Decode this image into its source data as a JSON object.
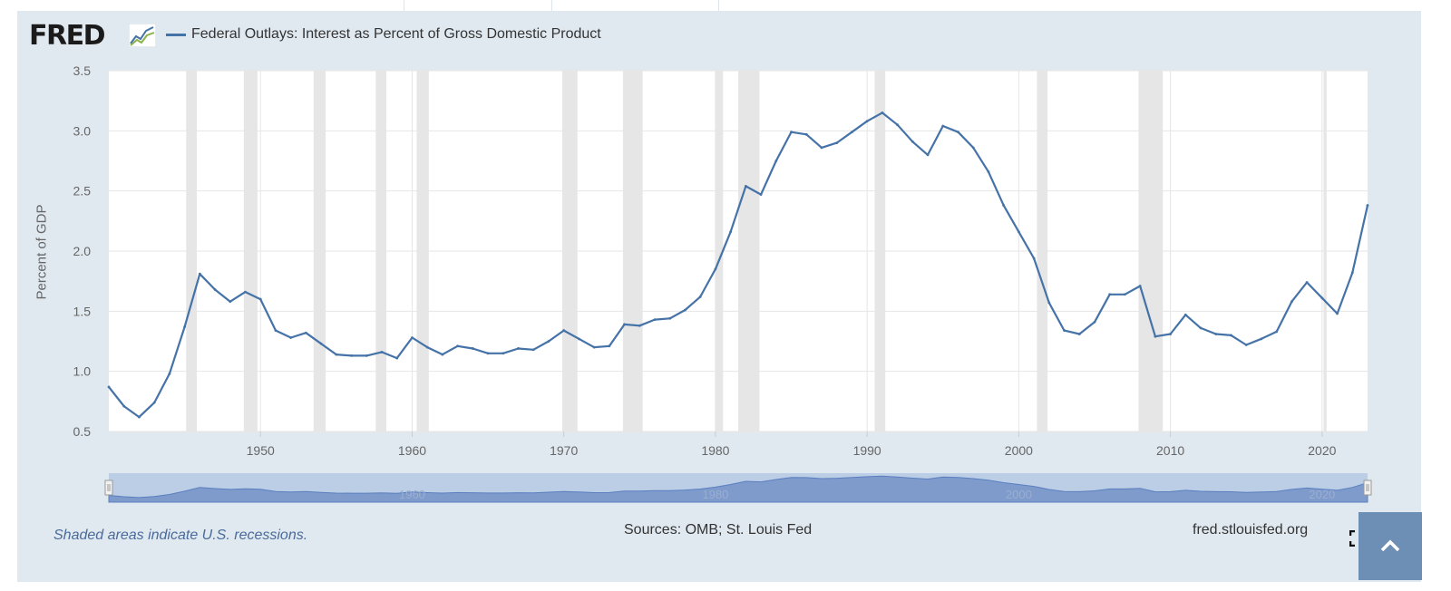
{
  "header": {
    "logo_text": "FRED",
    "legend_label": "Federal Outlays: Interest as Percent of Gross Domestic Product"
  },
  "icons": {
    "logo_graph": "line-graph-icon",
    "fullscreen": "fullscreen-icon",
    "scroll_top": "chevron-up-icon"
  },
  "colors": {
    "series": "#4572a7",
    "recession_shading": "#e6e6e6",
    "panel_background": "#e1e9f0",
    "navigator_fill": "#7f9bcc",
    "navigator_background": "#bccde6",
    "scroll_button": "#6e8fb5"
  },
  "chart_data": {
    "type": "line",
    "ylabel": "Percent of GDP",
    "xlabel": "",
    "xlim": [
      1940,
      2023
    ],
    "ylim": [
      0.5,
      3.5
    ],
    "y_ticks": [
      "0.5",
      "1.0",
      "1.5",
      "2.0",
      "2.5",
      "3.0",
      "3.5"
    ],
    "x_ticks": [
      "1950",
      "1960",
      "1970",
      "1980",
      "1990",
      "2000",
      "2010",
      "2020"
    ],
    "grid": true,
    "legend_position": "top-left",
    "series": [
      {
        "name": "Federal Outlays: Interest as Percent of Gross Domestic Product",
        "x": [
          1940,
          1941,
          1942,
          1943,
          1944,
          1945,
          1946,
          1947,
          1948,
          1949,
          1950,
          1951,
          1952,
          1953,
          1954,
          1955,
          1956,
          1957,
          1958,
          1959,
          1960,
          1961,
          1962,
          1963,
          1964,
          1965,
          1966,
          1967,
          1968,
          1969,
          1970,
          1971,
          1972,
          1973,
          1974,
          1975,
          1976,
          1977,
          1978,
          1979,
          1980,
          1981,
          1982,
          1983,
          1984,
          1985,
          1986,
          1987,
          1988,
          1989,
          1990,
          1991,
          1992,
          1993,
          1994,
          1995,
          1996,
          1997,
          1998,
          1999,
          2000,
          2001,
          2002,
          2003,
          2004,
          2005,
          2006,
          2007,
          2008,
          2009,
          2010,
          2011,
          2012,
          2013,
          2014,
          2015,
          2016,
          2017,
          2018,
          2019,
          2020,
          2021,
          2022,
          2023
        ],
        "values": [
          0.87,
          0.71,
          0.62,
          0.74,
          0.98,
          1.37,
          1.81,
          1.68,
          1.58,
          1.66,
          1.6,
          1.34,
          1.28,
          1.32,
          1.23,
          1.14,
          1.13,
          1.13,
          1.16,
          1.11,
          1.28,
          1.2,
          1.14,
          1.21,
          1.19,
          1.15,
          1.15,
          1.19,
          1.18,
          1.25,
          1.34,
          1.27,
          1.2,
          1.21,
          1.39,
          1.38,
          1.43,
          1.44,
          1.51,
          1.62,
          1.85,
          2.16,
          2.54,
          2.47,
          2.75,
          2.99,
          2.97,
          2.86,
          2.9,
          2.99,
          3.08,
          3.15,
          3.05,
          2.91,
          2.8,
          3.04,
          2.99,
          2.86,
          2.66,
          2.38,
          2.16,
          1.94,
          1.57,
          1.34,
          1.31,
          1.41,
          1.64,
          1.64,
          1.71,
          1.29,
          1.31,
          1.47,
          1.36,
          1.31,
          1.3,
          1.22,
          1.27,
          1.33,
          1.58,
          1.74,
          1.61,
          1.48,
          1.82,
          2.38
        ]
      }
    ],
    "recessions": [
      [
        1945.1,
        1945.8
      ],
      [
        1948.9,
        1949.8
      ],
      [
        1953.5,
        1954.3
      ],
      [
        1957.6,
        1958.3
      ],
      [
        1960.3,
        1961.1
      ],
      [
        1969.9,
        1970.9
      ],
      [
        1973.9,
        1975.2
      ],
      [
        1980.0,
        1980.5
      ],
      [
        1981.5,
        1982.9
      ],
      [
        1990.5,
        1991.2
      ],
      [
        2001.2,
        2001.9
      ],
      [
        2007.9,
        2009.5
      ],
      [
        2020.1,
        2020.3
      ]
    ],
    "navigator_ticks": [
      "1960",
      "1980",
      "2000",
      "2020"
    ],
    "annotation": "Shaded areas indicate U.S. recessions."
  },
  "footer": {
    "note": "Shaded areas indicate U.S. recessions.",
    "sources": "Sources: OMB; St. Louis Fed",
    "site": "fred.stlouisfed.org"
  }
}
